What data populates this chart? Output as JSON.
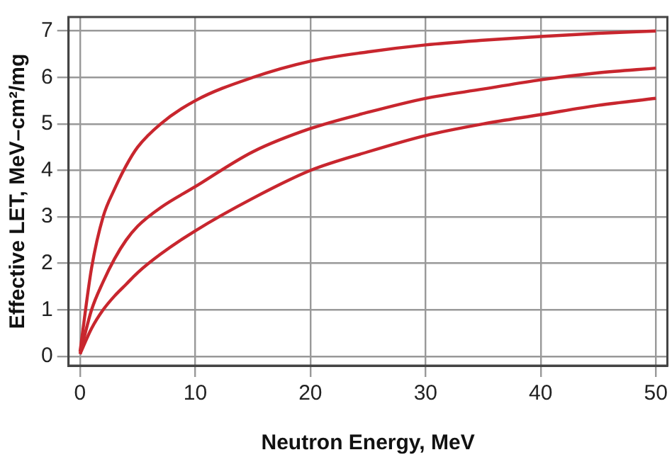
{
  "chart_data": {
    "type": "line",
    "xlabel": "Neutron Energy, MeV",
    "ylabel": "Effective LET, MeV–cm²/mg",
    "xlim": [
      -1,
      51
    ],
    "ylim": [
      -0.2,
      7.3
    ],
    "xticks": [
      0,
      10,
      20,
      30,
      40,
      50
    ],
    "yticks": [
      0,
      1,
      2,
      3,
      4,
      5,
      6,
      7
    ],
    "grid": true,
    "legend": false,
    "marker": "none",
    "line_style": "solid",
    "x": [
      0,
      1,
      2,
      3,
      4,
      5,
      7,
      10,
      15,
      20,
      25,
      30,
      35,
      40,
      45,
      50
    ],
    "series": [
      {
        "color": "#c8262e",
        "values": [
          0.1,
          1.9,
          3.0,
          3.6,
          4.1,
          4.5,
          5.0,
          5.5,
          6.0,
          6.35,
          6.55,
          6.7,
          6.8,
          6.88,
          6.95,
          7.0
        ]
      },
      {
        "color": "#c8262e",
        "values": [
          0.05,
          1.0,
          1.6,
          2.1,
          2.5,
          2.8,
          3.2,
          3.65,
          4.4,
          4.9,
          5.25,
          5.55,
          5.75,
          5.95,
          6.1,
          6.2
        ]
      },
      {
        "color": "#c8262e",
        "values": [
          0.05,
          0.6,
          1.0,
          1.3,
          1.55,
          1.8,
          2.2,
          2.7,
          3.4,
          4.0,
          4.4,
          4.75,
          5.0,
          5.2,
          5.4,
          5.55
        ]
      }
    ]
  }
}
